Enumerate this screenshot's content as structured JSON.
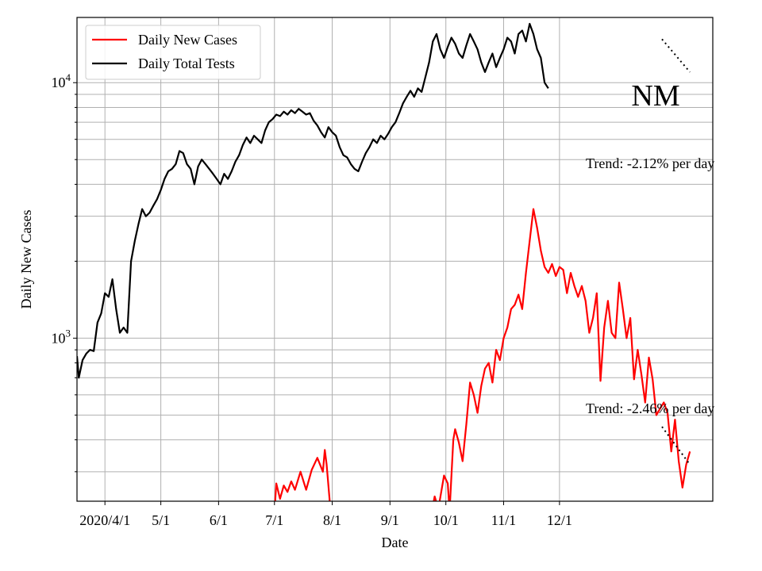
{
  "chart_data": {
    "type": "line",
    "title": "NM",
    "xlabel": "Date",
    "ylabel": "Daily New Cases",
    "y_scale": "log",
    "ylim": [
      230,
      18000
    ],
    "xlim": [
      "2020-03-17",
      "2021-01-26"
    ],
    "x_ticks": [
      {
        "date": "2020-04-01",
        "label": "2020/4/1"
      },
      {
        "date": "2020-05-01",
        "label": "5/1"
      },
      {
        "date": "2020-06-01",
        "label": "6/1"
      },
      {
        "date": "2020-07-01",
        "label": "7/1"
      },
      {
        "date": "2020-08-01",
        "label": "8/1"
      },
      {
        "date": "2020-09-01",
        "label": "9/1"
      },
      {
        "date": "2020-10-01",
        "label": "10/1"
      },
      {
        "date": "2020-11-01",
        "label": "11/1"
      },
      {
        "date": "2020-12-01",
        "label": "12/1"
      }
    ],
    "y_ticks": [
      {
        "value": 1000,
        "base": "10",
        "exp": "3"
      },
      {
        "value": 10000,
        "base": "10",
        "exp": "4"
      }
    ],
    "grid": true,
    "legend_position": "upper-left",
    "annotations": [
      {
        "text": "Trend: -2.12% per day",
        "series": "Daily Total Tests"
      },
      {
        "text": "Trend: -2.46% per day",
        "series": "Daily New Cases"
      }
    ],
    "series": [
      {
        "name": "Daily New Cases",
        "color": "#ff0000",
        "points": [
          [
            "2020-06-30",
            160
          ],
          [
            "2020-07-02",
            270
          ],
          [
            "2020-07-04",
            235
          ],
          [
            "2020-07-06",
            265
          ],
          [
            "2020-07-08",
            250
          ],
          [
            "2020-07-10",
            275
          ],
          [
            "2020-07-12",
            255
          ],
          [
            "2020-07-15",
            300
          ],
          [
            "2020-07-18",
            255
          ],
          [
            "2020-07-21",
            305
          ],
          [
            "2020-07-24",
            340
          ],
          [
            "2020-07-27",
            300
          ],
          [
            "2020-07-28",
            365
          ],
          [
            "2020-07-29",
            320
          ],
          [
            "2020-07-31",
            215
          ],
          [
            "2020-08-03",
            150
          ],
          [
            "2020-09-24",
            220
          ],
          [
            "2020-09-25",
            240
          ],
          [
            "2020-09-27",
            215
          ],
          [
            "2020-09-30",
            290
          ],
          [
            "2020-10-02",
            270
          ],
          [
            "2020-10-03",
            210
          ],
          [
            "2020-10-05",
            400
          ],
          [
            "2020-10-06",
            440
          ],
          [
            "2020-10-08",
            390
          ],
          [
            "2020-10-10",
            330
          ],
          [
            "2020-10-12",
            460
          ],
          [
            "2020-10-14",
            670
          ],
          [
            "2020-10-16",
            600
          ],
          [
            "2020-10-18",
            510
          ],
          [
            "2020-10-20",
            650
          ],
          [
            "2020-10-22",
            760
          ],
          [
            "2020-10-24",
            800
          ],
          [
            "2020-10-26",
            670
          ],
          [
            "2020-10-28",
            900
          ],
          [
            "2020-10-30",
            820
          ],
          [
            "2020-11-01",
            1000
          ],
          [
            "2020-11-03",
            1100
          ],
          [
            "2020-11-05",
            1300
          ],
          [
            "2020-11-07",
            1350
          ],
          [
            "2020-11-09",
            1480
          ],
          [
            "2020-11-11",
            1300
          ],
          [
            "2020-11-13",
            1800
          ],
          [
            "2020-11-15",
            2400
          ],
          [
            "2020-11-17",
            3200
          ],
          [
            "2020-11-19",
            2700
          ],
          [
            "2020-11-21",
            2200
          ],
          [
            "2020-11-23",
            1900
          ],
          [
            "2020-11-25",
            1800
          ],
          [
            "2020-11-27",
            1950
          ],
          [
            "2020-11-29",
            1750
          ],
          [
            "2020-12-01",
            1900
          ],
          [
            "2020-12-03",
            1850
          ],
          [
            "2020-12-05",
            1500
          ],
          [
            "2020-12-07",
            1800
          ],
          [
            "2020-12-09",
            1600
          ],
          [
            "2020-12-11",
            1450
          ],
          [
            "2020-12-13",
            1600
          ],
          [
            "2020-12-15",
            1400
          ],
          [
            "2020-12-17",
            1050
          ],
          [
            "2020-12-19",
            1200
          ],
          [
            "2020-12-21",
            1500
          ],
          [
            "2020-12-23",
            680
          ],
          [
            "2020-12-25",
            1100
          ],
          [
            "2020-12-27",
            1400
          ],
          [
            "2020-12-29",
            1050
          ],
          [
            "2020-12-31",
            1000
          ],
          [
            "2021-01-02",
            1650
          ],
          [
            "2021-01-04",
            1300
          ],
          [
            "2021-01-06",
            1000
          ],
          [
            "2021-01-08",
            1200
          ],
          [
            "2021-01-10",
            690
          ],
          [
            "2021-01-12",
            900
          ],
          [
            "2021-01-14",
            720
          ],
          [
            "2021-01-16",
            560
          ],
          [
            "2021-01-18",
            840
          ],
          [
            "2021-01-20",
            690
          ],
          [
            "2021-01-22",
            500
          ],
          [
            "2021-01-24",
            530
          ],
          [
            "2021-01-26",
            560
          ],
          [
            "2021-01-28",
            510
          ],
          [
            "2021-01-30",
            360
          ],
          [
            "2021-02-01",
            480
          ],
          [
            "2021-02-03",
            330
          ],
          [
            "2021-02-05",
            260
          ],
          [
            "2021-02-07",
            320
          ],
          [
            "2021-02-09",
            360
          ]
        ]
      },
      {
        "name": "Daily Total Tests",
        "color": "#000000",
        "points": [
          [
            "2020-03-17",
            850
          ],
          [
            "2020-03-18",
            700
          ],
          [
            "2020-03-20",
            820
          ],
          [
            "2020-03-22",
            870
          ],
          [
            "2020-03-24",
            900
          ],
          [
            "2020-03-26",
            890
          ],
          [
            "2020-03-28",
            1150
          ],
          [
            "2020-03-30",
            1250
          ],
          [
            "2020-04-01",
            1500
          ],
          [
            "2020-04-03",
            1450
          ],
          [
            "2020-04-05",
            1700
          ],
          [
            "2020-04-07",
            1300
          ],
          [
            "2020-04-09",
            1050
          ],
          [
            "2020-04-11",
            1100
          ],
          [
            "2020-04-13",
            1050
          ],
          [
            "2020-04-15",
            2000
          ],
          [
            "2020-04-17",
            2400
          ],
          [
            "2020-04-19",
            2800
          ],
          [
            "2020-04-21",
            3200
          ],
          [
            "2020-04-23",
            3000
          ],
          [
            "2020-04-25",
            3100
          ],
          [
            "2020-04-27",
            3300
          ],
          [
            "2020-04-29",
            3500
          ],
          [
            "2020-05-01",
            3800
          ],
          [
            "2020-05-03",
            4200
          ],
          [
            "2020-05-05",
            4500
          ],
          [
            "2020-05-07",
            4600
          ],
          [
            "2020-05-09",
            4800
          ],
          [
            "2020-05-11",
            5400
          ],
          [
            "2020-05-13",
            5300
          ],
          [
            "2020-05-15",
            4800
          ],
          [
            "2020-05-17",
            4600
          ],
          [
            "2020-05-19",
            4000
          ],
          [
            "2020-05-21",
            4700
          ],
          [
            "2020-05-23",
            5000
          ],
          [
            "2020-05-25",
            4800
          ],
          [
            "2020-05-27",
            4600
          ],
          [
            "2020-05-29",
            4400
          ],
          [
            "2020-05-31",
            4200
          ],
          [
            "2020-06-02",
            4000
          ],
          [
            "2020-06-04",
            4400
          ],
          [
            "2020-06-06",
            4200
          ],
          [
            "2020-06-08",
            4500
          ],
          [
            "2020-06-10",
            4900
          ],
          [
            "2020-06-12",
            5200
          ],
          [
            "2020-06-14",
            5700
          ],
          [
            "2020-06-16",
            6100
          ],
          [
            "2020-06-18",
            5800
          ],
          [
            "2020-06-20",
            6200
          ],
          [
            "2020-06-22",
            6000
          ],
          [
            "2020-06-24",
            5800
          ],
          [
            "2020-06-26",
            6500
          ],
          [
            "2020-06-28",
            7000
          ],
          [
            "2020-06-30",
            7200
          ],
          [
            "2020-07-02",
            7500
          ],
          [
            "2020-07-04",
            7400
          ],
          [
            "2020-07-06",
            7700
          ],
          [
            "2020-07-08",
            7500
          ],
          [
            "2020-07-10",
            7800
          ],
          [
            "2020-07-12",
            7600
          ],
          [
            "2020-07-14",
            7900
          ],
          [
            "2020-07-16",
            7700
          ],
          [
            "2020-07-18",
            7500
          ],
          [
            "2020-07-20",
            7600
          ],
          [
            "2020-07-22",
            7100
          ],
          [
            "2020-07-24",
            6800
          ],
          [
            "2020-07-26",
            6400
          ],
          [
            "2020-07-28",
            6100
          ],
          [
            "2020-07-30",
            6700
          ],
          [
            "2020-08-01",
            6400
          ],
          [
            "2020-08-03",
            6200
          ],
          [
            "2020-08-05",
            5600
          ],
          [
            "2020-08-07",
            5200
          ],
          [
            "2020-08-09",
            5100
          ],
          [
            "2020-08-11",
            4800
          ],
          [
            "2020-08-13",
            4600
          ],
          [
            "2020-08-15",
            4500
          ],
          [
            "2020-08-17",
            4900
          ],
          [
            "2020-08-19",
            5300
          ],
          [
            "2020-08-21",
            5600
          ],
          [
            "2020-08-23",
            6000
          ],
          [
            "2020-08-25",
            5800
          ],
          [
            "2020-08-27",
            6200
          ],
          [
            "2020-08-29",
            6000
          ],
          [
            "2020-08-31",
            6300
          ],
          [
            "2020-09-02",
            6700
          ],
          [
            "2020-09-04",
            7000
          ],
          [
            "2020-09-06",
            7600
          ],
          [
            "2020-09-08",
            8300
          ],
          [
            "2020-09-10",
            8800
          ],
          [
            "2020-09-12",
            9300
          ],
          [
            "2020-09-14",
            8800
          ],
          [
            "2020-09-16",
            9500
          ],
          [
            "2020-09-18",
            9200
          ],
          [
            "2020-09-20",
            10500
          ],
          [
            "2020-09-22",
            12000
          ],
          [
            "2020-09-24",
            14500
          ],
          [
            "2020-09-26",
            15500
          ],
          [
            "2020-09-28",
            13500
          ],
          [
            "2020-09-30",
            12500
          ],
          [
            "2020-10-02",
            13800
          ],
          [
            "2020-10-04",
            15000
          ],
          [
            "2020-10-06",
            14200
          ],
          [
            "2020-10-08",
            13000
          ],
          [
            "2020-10-10",
            12500
          ],
          [
            "2020-10-12",
            14000
          ],
          [
            "2020-10-14",
            15500
          ],
          [
            "2020-10-16",
            14500
          ],
          [
            "2020-10-18",
            13500
          ],
          [
            "2020-10-20",
            12000
          ],
          [
            "2020-10-22",
            11000
          ],
          [
            "2020-10-24",
            12000
          ],
          [
            "2020-10-26",
            13000
          ],
          [
            "2020-10-28",
            11500
          ],
          [
            "2020-10-30",
            12500
          ],
          [
            "2020-11-01",
            13500
          ],
          [
            "2020-11-03",
            15000
          ],
          [
            "2020-11-05",
            14500
          ],
          [
            "2020-11-07",
            13000
          ],
          [
            "2020-11-09",
            15500
          ],
          [
            "2020-11-11",
            16000
          ],
          [
            "2020-11-13",
            14500
          ],
          [
            "2020-11-15",
            17000
          ],
          [
            "2020-11-17",
            15500
          ],
          [
            "2020-11-19",
            13500
          ],
          [
            "2020-11-21",
            12500
          ],
          [
            "2020-11-23",
            10000
          ],
          [
            "2020-11-25",
            9500
          ]
        ]
      }
    ],
    "trend_lines": [
      {
        "series": "Daily Total Tests",
        "style": "dotted",
        "points": [
          [
            "2021-01-25",
            14800
          ],
          [
            "2021-02-09",
            11000
          ]
        ]
      },
      {
        "series": "Daily New Cases",
        "style": "dotted",
        "points": [
          [
            "2021-01-25",
            450
          ],
          [
            "2021-02-09",
            320
          ]
        ]
      }
    ]
  }
}
